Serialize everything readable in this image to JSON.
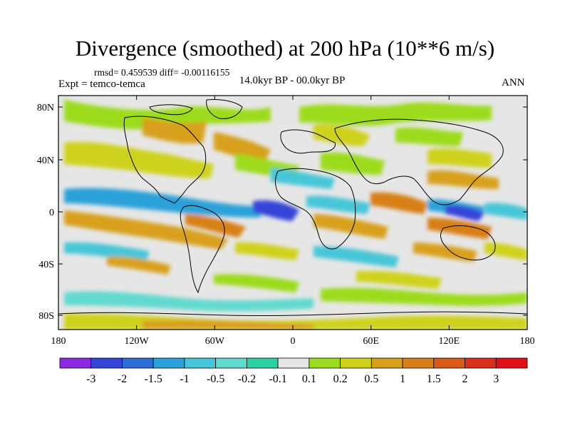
{
  "title": "Divergence (smoothed) at 200 hPa (10**6 m/s)",
  "stats": {
    "rmsd_label": "rmsd= 0.459539 diff= -0.00116155"
  },
  "experiment": "Expt = temco-temca",
  "period": "14.0kyr BP - 00.0kyr BP",
  "season": "ANN",
  "map": {
    "lat_ticks": [
      "80N",
      "40N",
      "0",
      "40S",
      "80S"
    ],
    "lon_ticks": [
      "180",
      "120W",
      "60W",
      "0",
      "60E",
      "120E",
      "180"
    ]
  },
  "colorbar": {
    "labels": [
      "-3",
      "-2",
      "-1.5",
      "-1",
      "-0.5",
      "-0.2",
      "-0.1",
      "0.1",
      "0.2",
      "0.5",
      "1",
      "1.5",
      "2",
      "3"
    ],
    "colors": [
      "#8a2be2",
      "#3445d8",
      "#2b6fd6",
      "#2aa1d9",
      "#46c6d8",
      "#62d9cf",
      "#2ed1a4",
      "#e6e6e6",
      "#9cdb1e",
      "#cfd21a",
      "#d8a01a",
      "#d87f18",
      "#d85a18",
      "#d8301c",
      "#e0101a"
    ]
  }
}
